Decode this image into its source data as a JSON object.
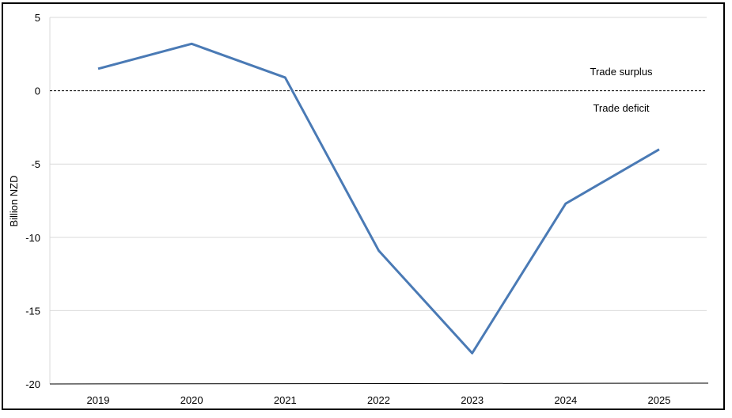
{
  "chart_data": {
    "type": "line",
    "title": "",
    "xlabel": "",
    "ylabel": "Billion NZD",
    "categories": [
      "2019",
      "2020",
      "2021",
      "2022",
      "2023",
      "2024",
      "2025"
    ],
    "series": [
      {
        "values": [
          1.5,
          3.2,
          0.9,
          -10.9,
          -17.9,
          -7.7,
          -4.0
        ],
        "color": "#4a7ab5"
      }
    ],
    "ylim": [
      -20,
      5
    ],
    "yticks": [
      "5",
      "0",
      "-5",
      "-10",
      "-15",
      "-20"
    ],
    "grid": true,
    "reference_line": {
      "y": 0,
      "style": "dashed"
    },
    "annotations": {
      "surplus": "Trade surplus",
      "deficit": "Trade deficit"
    },
    "colors": {
      "line": "#4a7ab5",
      "grid": "#d9d9d9",
      "axis": "#000000"
    }
  }
}
